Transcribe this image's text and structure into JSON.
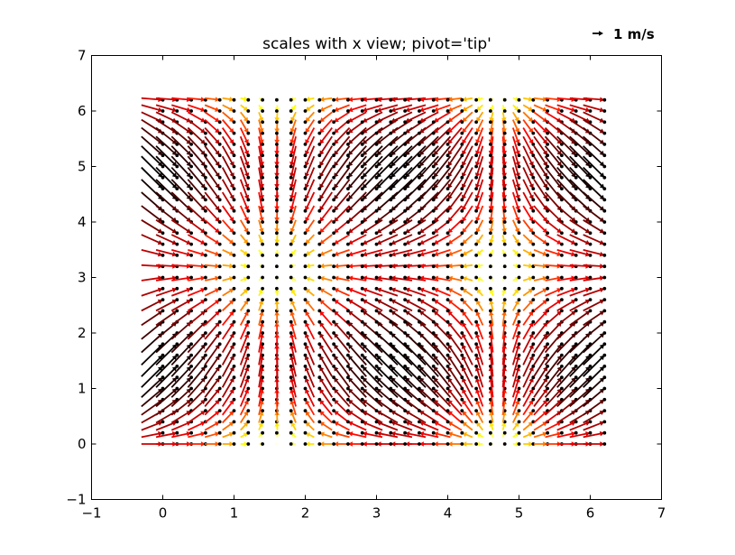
{
  "chart_data": {
    "type": "quiver",
    "title": "scales with x view; pivot='tip'",
    "xlabel": "",
    "ylabel": "",
    "xlim": [
      -1,
      7
    ],
    "ylim": [
      -1,
      7
    ],
    "xticks": [
      "−1",
      "0",
      "1",
      "2",
      "3",
      "4",
      "5",
      "6",
      "7"
    ],
    "yticks": [
      "−1",
      "0",
      "1",
      "2",
      "3",
      "4",
      "5",
      "6",
      "7"
    ],
    "grid": false,
    "pivot": "tip",
    "field": {
      "u": "cos(x)",
      "v": "sin(y)",
      "x_range": [
        0,
        6.2
      ],
      "y_range": [
        0,
        6.2
      ],
      "step": 0.2,
      "color_by": "magnitude",
      "colormap": "hot"
    },
    "quiver_key": {
      "label": "1 m/s",
      "length": 1,
      "position": "top-right"
    }
  }
}
